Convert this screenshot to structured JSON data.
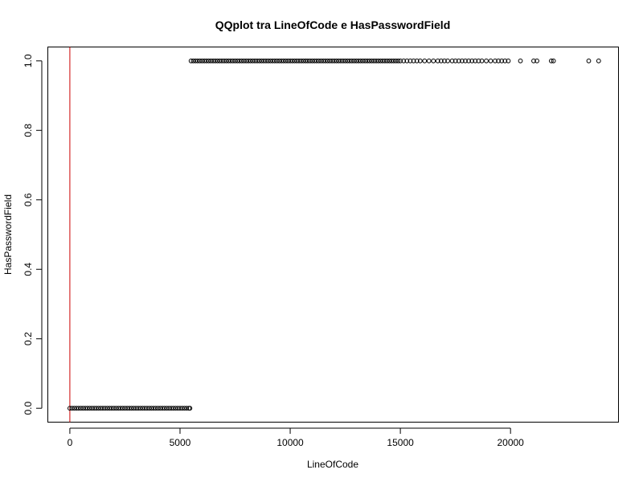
{
  "chart_data": {
    "type": "scatter",
    "title": "QQplot tra LineOfCode e HasPasswordField",
    "xlabel": "LineOfCode",
    "ylabel": "HasPasswordField",
    "xlim": [
      -1000,
      24900
    ],
    "ylim": [
      -0.04,
      1.04
    ],
    "x_ticks": [
      0,
      5000,
      10000,
      15000,
      20000
    ],
    "x_tick_labels": [
      "0",
      "5000",
      "10000",
      "15000",
      "20000"
    ],
    "y_ticks": [
      0.0,
      0.2,
      0.4,
      0.6,
      0.8,
      1.0
    ],
    "y_tick_labels": [
      "0.0",
      "0.2",
      "0.4",
      "0.6",
      "0.8",
      "1.0"
    ],
    "grid": false,
    "legend": "none",
    "reference_line": {
      "orientation": "vertical",
      "x": 0,
      "color": "#cc0000"
    },
    "series": [
      {
        "y": 0,
        "x": [
          0,
          100,
          200,
          300,
          400,
          500,
          600,
          700,
          800,
          900,
          1000,
          1100,
          1200,
          1300,
          1400,
          1500,
          1600,
          1700,
          1800,
          1900,
          2000,
          2100,
          2200,
          2300,
          2400,
          2500,
          2600,
          2700,
          2800,
          2900,
          3000,
          3100,
          3200,
          3300,
          3400,
          3500,
          3600,
          3700,
          3800,
          3900,
          4000,
          4100,
          4200,
          4300,
          4400,
          4500,
          4600,
          4700,
          4800,
          4900,
          5000,
          5100,
          5200,
          5300,
          5400,
          5450
        ]
      },
      {
        "y": 1,
        "x": [
          5500,
          5600,
          5700,
          5800,
          5900,
          6000,
          6100,
          6200,
          6300,
          6400,
          6500,
          6600,
          6700,
          6800,
          6900,
          7000,
          7100,
          7200,
          7300,
          7400,
          7500,
          7600,
          7700,
          7800,
          7900,
          8000,
          8100,
          8200,
          8300,
          8400,
          8500,
          8600,
          8700,
          8800,
          8900,
          9000,
          9100,
          9200,
          9300,
          9400,
          9500,
          9600,
          9700,
          9800,
          9900,
          10000,
          10100,
          10200,
          10300,
          10400,
          10500,
          10600,
          10700,
          10800,
          10900,
          11000,
          11100,
          11200,
          11300,
          11400,
          11500,
          11600,
          11700,
          11800,
          11900,
          12000,
          12100,
          12200,
          12300,
          12400,
          12500,
          12600,
          12700,
          12800,
          12900,
          13000,
          13100,
          13200,
          13300,
          13400,
          13500,
          13600,
          13700,
          13800,
          13900,
          14000,
          14100,
          14200,
          14300,
          14400,
          14500,
          14600,
          14700,
          14800,
          14900,
          15000,
          15150,
          15300,
          15450,
          15600,
          15750,
          15900,
          16100,
          16300,
          16500,
          16700,
          16850,
          17000,
          17150,
          17350,
          17500,
          17650,
          17800,
          17950,
          18100,
          18250,
          18400,
          18550,
          18700,
          18900,
          19100,
          19300,
          19450,
          19600,
          19750,
          19900,
          20450,
          21050,
          21200,
          21850,
          21950,
          23550,
          24000
        ]
      }
    ]
  }
}
